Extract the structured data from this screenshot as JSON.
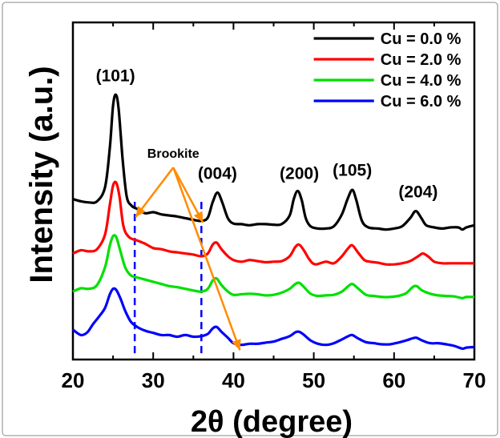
{
  "chart_data": {
    "type": "line",
    "xlabel": "2θ (degree)",
    "ylabel": "Intensity (a.u.)",
    "xlim": [
      20,
      70
    ],
    "xticks": [
      20,
      30,
      40,
      50,
      60,
      70
    ],
    "y_axis_tick_labels": "none",
    "grid": false,
    "legend_position": "top-right",
    "series": [
      {
        "name": "Cu = 0.0 %",
        "color": "#000000",
        "offset": 2.55,
        "points": [
          [
            20,
            0.4
          ],
          [
            21,
            0.36
          ],
          [
            22,
            0.34
          ],
          [
            23,
            0.36
          ],
          [
            24,
            0.62
          ],
          [
            24.6,
            1.35
          ],
          [
            25,
            2.12
          ],
          [
            25.35,
            2.32
          ],
          [
            25.7,
            2.05
          ],
          [
            26.2,
            1.12
          ],
          [
            26.7,
            0.45
          ],
          [
            27.3,
            0.28
          ],
          [
            28,
            0.22
          ],
          [
            29,
            0.14
          ],
          [
            30,
            0.16
          ],
          [
            31,
            0.12
          ],
          [
            32,
            0.1
          ],
          [
            33,
            0.08
          ],
          [
            34,
            0.05
          ],
          [
            35,
            0.02
          ],
          [
            36,
            0.0
          ],
          [
            36.8,
            0.06
          ],
          [
            37.4,
            0.34
          ],
          [
            38,
            0.52
          ],
          [
            38.6,
            0.34
          ],
          [
            39.3,
            0.05
          ],
          [
            40,
            -0.05
          ],
          [
            41,
            -0.06
          ],
          [
            42,
            -0.08
          ],
          [
            43,
            -0.06
          ],
          [
            44,
            -0.06
          ],
          [
            45,
            -0.07
          ],
          [
            46,
            -0.06
          ],
          [
            47,
            0.1
          ],
          [
            47.5,
            0.4
          ],
          [
            48,
            0.55
          ],
          [
            48.5,
            0.38
          ],
          [
            49,
            0.05
          ],
          [
            49.6,
            -0.1
          ],
          [
            50.5,
            -0.14
          ],
          [
            51.5,
            -0.14
          ],
          [
            52.5,
            -0.1
          ],
          [
            53.5,
            0.12
          ],
          [
            54.2,
            0.4
          ],
          [
            54.8,
            0.57
          ],
          [
            55.3,
            0.38
          ],
          [
            56,
            0.0
          ],
          [
            56.8,
            -0.12
          ],
          [
            58,
            -0.14
          ],
          [
            59,
            -0.16
          ],
          [
            60,
            -0.14
          ],
          [
            61,
            -0.1
          ],
          [
            62,
            0.05
          ],
          [
            62.7,
            0.18
          ],
          [
            63.4,
            0.05
          ],
          [
            64,
            -0.08
          ],
          [
            65,
            -0.12
          ],
          [
            66,
            -0.14
          ],
          [
            67,
            -0.12
          ],
          [
            68,
            -0.12
          ],
          [
            68.5,
            -0.16
          ],
          [
            69,
            -0.12
          ],
          [
            70,
            -0.08
          ]
        ]
      },
      {
        "name": "Cu = 2.0 %",
        "color": "#ff0000",
        "offset": 1.85,
        "points": [
          [
            20,
            0.1
          ],
          [
            21,
            0.16
          ],
          [
            22,
            0.14
          ],
          [
            23,
            0.18
          ],
          [
            24,
            0.45
          ],
          [
            24.6,
            1.0
          ],
          [
            25,
            1.35
          ],
          [
            25.4,
            1.4
          ],
          [
            25.8,
            1.15
          ],
          [
            26.3,
            0.6
          ],
          [
            27,
            0.4
          ],
          [
            28,
            0.34
          ],
          [
            29,
            0.28
          ],
          [
            30,
            0.2
          ],
          [
            31,
            0.18
          ],
          [
            32,
            0.14
          ],
          [
            33,
            0.12
          ],
          [
            34,
            0.1
          ],
          [
            35,
            0.08
          ],
          [
            36,
            0.05
          ],
          [
            36.8,
            0.1
          ],
          [
            37.4,
            0.26
          ],
          [
            37.9,
            0.3
          ],
          [
            38.5,
            0.18
          ],
          [
            39.3,
            0.05
          ],
          [
            40,
            -0.02
          ],
          [
            41,
            -0.05
          ],
          [
            42,
            -0.02
          ],
          [
            43,
            -0.04
          ],
          [
            44,
            -0.06
          ],
          [
            45,
            -0.05
          ],
          [
            46,
            -0.04
          ],
          [
            47,
            0.05
          ],
          [
            47.7,
            0.22
          ],
          [
            48.2,
            0.26
          ],
          [
            48.8,
            0.15
          ],
          [
            49.5,
            -0.02
          ],
          [
            50.2,
            -0.1
          ],
          [
            51.5,
            -0.05
          ],
          [
            52.5,
            -0.08
          ],
          [
            53.5,
            0.05
          ],
          [
            54.3,
            0.2
          ],
          [
            54.8,
            0.25
          ],
          [
            55.5,
            0.12
          ],
          [
            56.3,
            -0.02
          ],
          [
            57,
            -0.05
          ],
          [
            58,
            -0.07
          ],
          [
            59,
            -0.1
          ],
          [
            60,
            -0.1
          ],
          [
            61,
            -0.08
          ],
          [
            62,
            -0.04
          ],
          [
            63,
            0.05
          ],
          [
            63.6,
            0.1
          ],
          [
            64.3,
            0.04
          ],
          [
            65,
            -0.05
          ],
          [
            66,
            -0.08
          ],
          [
            67,
            -0.08
          ],
          [
            68,
            -0.08
          ],
          [
            69,
            -0.08
          ],
          [
            70,
            -0.08
          ]
        ]
      },
      {
        "name": "Cu = 4.0 %",
        "color": "#00e000",
        "offset": 1.25,
        "points": [
          [
            20,
            0.0
          ],
          [
            21,
            0.06
          ],
          [
            22,
            0.05
          ],
          [
            23,
            0.12
          ],
          [
            24,
            0.45
          ],
          [
            24.6,
            0.85
          ],
          [
            25,
            1.02
          ],
          [
            25.4,
            1.0
          ],
          [
            25.9,
            0.75
          ],
          [
            26.5,
            0.45
          ],
          [
            27.2,
            0.3
          ],
          [
            28,
            0.26
          ],
          [
            29,
            0.22
          ],
          [
            30,
            0.18
          ],
          [
            31,
            0.14
          ],
          [
            32,
            0.1
          ],
          [
            33,
            0.08
          ],
          [
            34,
            0.05
          ],
          [
            35,
            0.02
          ],
          [
            36,
            0.0
          ],
          [
            36.8,
            0.05
          ],
          [
            37.4,
            0.2
          ],
          [
            37.9,
            0.24
          ],
          [
            38.5,
            0.12
          ],
          [
            39.3,
            0.0
          ],
          [
            40,
            -0.06
          ],
          [
            41,
            -0.05
          ],
          [
            42,
            -0.04
          ],
          [
            43,
            -0.05
          ],
          [
            44,
            -0.07
          ],
          [
            45,
            -0.06
          ],
          [
            46,
            -0.02
          ],
          [
            47,
            0.05
          ],
          [
            47.7,
            0.14
          ],
          [
            48.2,
            0.16
          ],
          [
            48.8,
            0.08
          ],
          [
            49.6,
            -0.04
          ],
          [
            50.5,
            -0.08
          ],
          [
            51.5,
            -0.07
          ],
          [
            52.5,
            -0.06
          ],
          [
            53.5,
            0.0
          ],
          [
            54.3,
            0.1
          ],
          [
            54.8,
            0.14
          ],
          [
            55.5,
            0.06
          ],
          [
            56.5,
            -0.06
          ],
          [
            57.5,
            -0.08
          ],
          [
            58.5,
            -0.1
          ],
          [
            59.5,
            -0.1
          ],
          [
            60.5,
            -0.08
          ],
          [
            61.5,
            -0.03
          ],
          [
            62.3,
            0.08
          ],
          [
            62.8,
            0.1
          ],
          [
            63.5,
            0.02
          ],
          [
            64.5,
            -0.04
          ],
          [
            65.5,
            -0.07
          ],
          [
            66.5,
            -0.08
          ],
          [
            67.5,
            -0.09
          ],
          [
            68.5,
            -0.12
          ],
          [
            69,
            -0.1
          ],
          [
            70,
            -0.1
          ]
        ]
      },
      {
        "name": "Cu = 6.0 %",
        "color": "#0000ff",
        "offset": 0.55,
        "points": [
          [
            20,
            0.0
          ],
          [
            21,
            -0.1
          ],
          [
            21.8,
            -0.05
          ],
          [
            22.5,
            0.1
          ],
          [
            23.3,
            0.25
          ],
          [
            24,
            0.4
          ],
          [
            24.6,
            0.65
          ],
          [
            25,
            0.75
          ],
          [
            25.4,
            0.73
          ],
          [
            25.9,
            0.58
          ],
          [
            26.5,
            0.35
          ],
          [
            27.2,
            0.15
          ],
          [
            28,
            0.05
          ],
          [
            29,
            -0.02
          ],
          [
            30,
            -0.06
          ],
          [
            31,
            -0.1
          ],
          [
            32,
            -0.1
          ],
          [
            33,
            -0.13
          ],
          [
            34,
            -0.1
          ],
          [
            35,
            -0.13
          ],
          [
            36,
            -0.12
          ],
          [
            36.8,
            -0.08
          ],
          [
            37.4,
            0.02
          ],
          [
            37.9,
            0.05
          ],
          [
            38.5,
            -0.04
          ],
          [
            39.3,
            -0.15
          ],
          [
            40,
            -0.25
          ],
          [
            41,
            -0.28
          ],
          [
            42,
            -0.26
          ],
          [
            43,
            -0.26
          ],
          [
            44,
            -0.24
          ],
          [
            45,
            -0.22
          ],
          [
            46,
            -0.17
          ],
          [
            47,
            -0.12
          ],
          [
            47.7,
            -0.05
          ],
          [
            48.2,
            -0.04
          ],
          [
            48.8,
            -0.1
          ],
          [
            49.6,
            -0.2
          ],
          [
            50.5,
            -0.26
          ],
          [
            51.5,
            -0.28
          ],
          [
            52.5,
            -0.25
          ],
          [
            53.5,
            -0.18
          ],
          [
            54.3,
            -0.12
          ],
          [
            54.8,
            -0.1
          ],
          [
            55.5,
            -0.16
          ],
          [
            56.5,
            -0.23
          ],
          [
            57.5,
            -0.25
          ],
          [
            58.5,
            -0.27
          ],
          [
            59.5,
            -0.27
          ],
          [
            60.5,
            -0.24
          ],
          [
            61.5,
            -0.2
          ],
          [
            62.3,
            -0.16
          ],
          [
            62.8,
            -0.15
          ],
          [
            63.5,
            -0.2
          ],
          [
            64.5,
            -0.25
          ],
          [
            65.5,
            -0.25
          ],
          [
            66.5,
            -0.27
          ],
          [
            67.5,
            -0.3
          ],
          [
            68.5,
            -0.35
          ],
          [
            69,
            -0.33
          ],
          [
            70,
            -0.32
          ]
        ]
      }
    ],
    "peak_labels": [
      {
        "text": "(101)",
        "x": 25.3,
        "y": 5.12
      },
      {
        "text": "(004)",
        "x": 38.0,
        "y": 3.32
      },
      {
        "text": "(200)",
        "x": 48.2,
        "y": 3.32
      },
      {
        "text": "(105)",
        "x": 54.8,
        "y": 3.38
      },
      {
        "text": "(204)",
        "x": 63.0,
        "y": 2.98
      }
    ],
    "annotation": {
      "text": "Brookite",
      "x": 32.5,
      "y": 3.62,
      "color": "#ff8c00",
      "arrow_targets": [
        [
          27.8,
          2.62
        ],
        [
          36.2,
          2.52
        ],
        [
          40.8,
          0.17
        ]
      ]
    },
    "reference_lines": {
      "color": "#0000ff",
      "style": "dashed",
      "x_positions": [
        27.7,
        36.0
      ],
      "y_range": [
        0.1,
        2.9
      ]
    },
    "legend": {
      "line_length_pct": 0.15
    }
  }
}
